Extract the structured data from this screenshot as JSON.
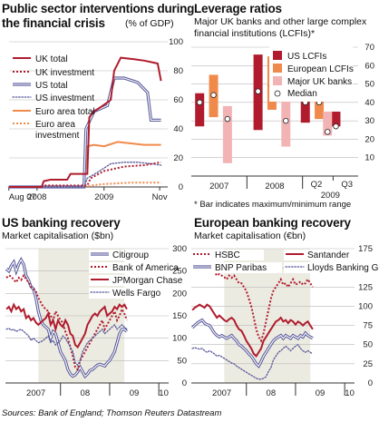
{
  "charts": {
    "public": {
      "title_line1": "Public sector interventions during",
      "title_line2": "the financial crisis",
      "unit": "(% of GDP)"
    },
    "leverage": {
      "title": "Leverage ratios",
      "sub_line1": "Major UK banks and other large complex",
      "sub_line2": "financial institutions (LCFIs)*",
      "footnote": "* Bar indicates maximum/minimum range"
    },
    "us": {
      "title": "US banking recovery",
      "sub": "Market capitalisation ($bn)"
    },
    "eu": {
      "title": "European banking recovery",
      "sub": "Market capitalisation (€bn)"
    }
  },
  "source": "Sources: Bank of England; Thomson Reuters Datastream",
  "colors": {
    "red": "#b01c2e",
    "navy": "#5a5a9c",
    "orange": "#f08a4b",
    "pink": "#f2b3b5",
    "shade": "#ecebe1",
    "grid": "#b8b8b8"
  },
  "chart_data": [
    {
      "id": "public",
      "type": "line",
      "ylim": [
        0,
        100
      ],
      "yticks": [
        0,
        20,
        40,
        60,
        80,
        100
      ],
      "xlim": [
        2007.583,
        2009.95
      ],
      "xtick_labels": [
        {
          "label": "Aug 07",
          "x": 2007.58
        },
        {
          "label": "2008",
          "x": 2008.0
        },
        {
          "label": "2009",
          "x": 2009.0
        },
        {
          "label": "Nov",
          "x": 2009.83
        }
      ],
      "series": [
        {
          "name": "UK total",
          "color": "#b01c2e",
          "style": "solid",
          "points": [
            [
              2007.58,
              0
            ],
            [
              2008.07,
              0
            ],
            [
              2008.1,
              4
            ],
            [
              2008.2,
              5
            ],
            [
              2008.45,
              5
            ],
            [
              2008.5,
              9
            ],
            [
              2008.75,
              9
            ],
            [
              2008.78,
              48
            ],
            [
              2008.85,
              52
            ],
            [
              2008.95,
              55
            ],
            [
              2009.1,
              60
            ],
            [
              2009.15,
              80
            ],
            [
              2009.25,
              89
            ],
            [
              2009.45,
              88
            ],
            [
              2009.6,
              87
            ],
            [
              2009.7,
              86
            ],
            [
              2009.8,
              85
            ],
            [
              2009.85,
              73
            ]
          ]
        },
        {
          "name": "UK investment",
          "color": "#b01c2e",
          "style": "dotted",
          "points": [
            [
              2007.58,
              0
            ],
            [
              2008.07,
              0
            ],
            [
              2008.1,
              1
            ],
            [
              2008.75,
              1
            ],
            [
              2008.8,
              6
            ],
            [
              2009.0,
              11
            ],
            [
              2009.3,
              14
            ],
            [
              2009.6,
              15
            ],
            [
              2009.85,
              17
            ]
          ]
        },
        {
          "name": "US total",
          "color": "#5a5a9c",
          "style": "double",
          "points": [
            [
              2007.58,
              0
            ],
            [
              2008.7,
              0
            ],
            [
              2008.73,
              40
            ],
            [
              2008.85,
              52
            ],
            [
              2008.95,
              54
            ],
            [
              2009.05,
              56
            ],
            [
              2009.15,
              75
            ],
            [
              2009.3,
              75
            ],
            [
              2009.5,
              72
            ],
            [
              2009.65,
              65
            ],
            [
              2009.7,
              46
            ],
            [
              2009.85,
              46
            ]
          ]
        },
        {
          "name": "US investment",
          "color": "#5a5a9c",
          "style": "open-dots",
          "points": [
            [
              2007.58,
              0
            ],
            [
              2008.7,
              0
            ],
            [
              2008.75,
              6
            ],
            [
              2008.9,
              10
            ],
            [
              2009.1,
              16
            ],
            [
              2009.3,
              17
            ],
            [
              2009.5,
              17
            ],
            [
              2009.7,
              16
            ],
            [
              2009.85,
              15
            ]
          ]
        },
        {
          "name": "Euro area total",
          "color": "#f08a4b",
          "style": "solid",
          "points": [
            [
              2007.58,
              0
            ],
            [
              2008.7,
              0
            ],
            [
              2008.75,
              28
            ],
            [
              2008.85,
              29
            ],
            [
              2009.0,
              28
            ],
            [
              2009.2,
              31
            ],
            [
              2009.4,
              30
            ],
            [
              2009.6,
              29
            ],
            [
              2009.85,
              29
            ]
          ]
        },
        {
          "name": "Euro area investment",
          "color": "#f08a4b",
          "style": "dotted",
          "points": [
            [
              2007.58,
              0
            ],
            [
              2008.75,
              0
            ],
            [
              2008.8,
              1
            ],
            [
              2009.0,
              2
            ],
            [
              2009.4,
              3
            ],
            [
              2009.85,
              3
            ]
          ]
        }
      ]
    },
    {
      "id": "leverage",
      "type": "bar",
      "ylim": [
        0,
        70
      ],
      "ytick_labels": [
        "10",
        "20",
        "30",
        "40",
        "50",
        "60",
        "70"
      ],
      "yticks": [
        10,
        20,
        30,
        40,
        50,
        60,
        70
      ],
      "xtick_labels": [
        {
          "label": "2007",
          "x": 2007.5
        },
        {
          "label": "2008",
          "x": 2008.5
        },
        {
          "label": "Q2",
          "x": 2009.25
        },
        {
          "label": "2009",
          "x": 2009.5
        },
        {
          "label": "Q3",
          "x": 2009.8
        }
      ],
      "xlim": [
        2007.0,
        2010.0
      ],
      "series": [
        {
          "name": "US LCFIs",
          "color": "#b01c2e",
          "ranges": [
            [
              2007.15,
              27,
              45,
              40
            ],
            [
              2008.2,
              25,
              66,
              46
            ],
            [
              2009.05,
              29,
              52,
              40
            ],
            [
              2009.6,
              27,
              35,
              27
            ]
          ]
        },
        {
          "name": "European LCFIs",
          "color": "#f08a4b",
          "ranges": [
            [
              2007.4,
              32,
              55,
              44
            ],
            [
              2008.45,
              36,
              65,
              49
            ],
            [
              2009.3,
              31,
              43,
              40
            ]
          ]
        },
        {
          "name": "Major UK banks",
          "color": "#f2b3b5",
          "ranges": [
            [
              2007.65,
              7,
              38,
              31
            ],
            [
              2008.7,
              16,
              43,
              30
            ],
            [
              2009.45,
              22,
              35,
              24
            ]
          ]
        }
      ],
      "median_label": "Median"
    },
    {
      "id": "us",
      "type": "line",
      "ylim": [
        0,
        300
      ],
      "yticks": [
        0,
        50,
        100,
        150,
        200,
        250,
        300
      ],
      "xlim": [
        2006.88,
        2010.2
      ],
      "xtick_labels": [
        {
          "label": "2007",
          "x": 2007.5
        },
        {
          "label": "08",
          "x": 2008.5
        },
        {
          "label": "09",
          "x": 2009.5
        },
        {
          "label": "10",
          "x": 2010.1
        }
      ],
      "series": [
        {
          "name": "Citigroup",
          "color": "#5a5a9c",
          "style": "double",
          "values_start": 2006.9,
          "values_step": 0.05,
          "values": [
            255,
            250,
            262,
            270,
            250,
            265,
            275,
            265,
            240,
            230,
            215,
            210,
            190,
            160,
            140,
            130,
            125,
            120,
            100,
            115,
            110,
            90,
            70,
            60,
            50,
            30,
            20,
            15,
            18,
            25,
            35,
            25,
            15,
            20,
            28,
            30,
            35,
            40,
            42,
            40,
            38,
            45,
            50,
            60,
            70,
            90,
            110,
            120,
            120,
            115
          ]
        },
        {
          "name": "Bank of America",
          "color": "#b01c2e",
          "style": "dotted",
          "values_start": 2006.9,
          "values_step": 0.05,
          "values": [
            235,
            240,
            238,
            230,
            225,
            235,
            230,
            240,
            232,
            225,
            215,
            210,
            205,
            190,
            180,
            170,
            165,
            160,
            150,
            140,
            160,
            150,
            140,
            135,
            115,
            100,
            80,
            60,
            35,
            30,
            50,
            60,
            70,
            80,
            90,
            100,
            110,
            120,
            130,
            140,
            120,
            130,
            140,
            150,
            160,
            140,
            150,
            165,
            155,
            140
          ]
        },
        {
          "name": "JPMorgan Chase",
          "color": "#b01c2e",
          "style": "solid",
          "values_start": 2006.9,
          "values_step": 0.05,
          "values": [
            165,
            170,
            160,
            175,
            165,
            170,
            160,
            165,
            145,
            150,
            140,
            145,
            135,
            130,
            135,
            140,
            145,
            155,
            130,
            140,
            120,
            140,
            130,
            125,
            140,
            130,
            110,
            105,
            85,
            80,
            90,
            100,
            110,
            130,
            140,
            150,
            155,
            150,
            160,
            165,
            170,
            150,
            155,
            160,
            170,
            165,
            175,
            170,
            175,
            165
          ]
        },
        {
          "name": "Wells Fargo",
          "color": "#5a5a9c",
          "style": "open-dots",
          "values_start": 2006.9,
          "values_step": 0.05,
          "values": [
            120,
            122,
            118,
            120,
            115,
            118,
            120,
            115,
            110,
            105,
            95,
            100,
            95,
            90,
            92,
            95,
            100,
            105,
            90,
            95,
            85,
            90,
            95,
            105,
            100,
            90,
            80,
            70,
            45,
            40,
            50,
            70,
            80,
            90,
            95,
            100,
            105,
            110,
            115,
            120,
            110,
            115,
            120,
            125,
            130,
            120,
            125,
            130,
            125,
            120
          ]
        }
      ]
    },
    {
      "id": "eu",
      "type": "line",
      "ylim": [
        0,
        175
      ],
      "yticks": [
        0,
        25,
        50,
        75,
        100,
        125,
        150,
        175
      ],
      "xlim": [
        2006.88,
        2010.2
      ],
      "xtick_labels": [
        {
          "label": "2007",
          "x": 2007.5
        },
        {
          "label": "08",
          "x": 2008.5
        },
        {
          "label": "09",
          "x": 2009.5
        },
        {
          "label": "10",
          "x": 2010.1
        }
      ],
      "series": [
        {
          "name": "HSBC",
          "color": "#b01c2e",
          "style": "dotted",
          "values_start": 2006.9,
          "values_step": 0.05,
          "values": [
            150,
            148,
            152,
            155,
            150,
            148,
            152,
            155,
            150,
            145,
            140,
            142,
            140,
            138,
            135,
            140,
            137,
            140,
            135,
            130,
            130,
            125,
            120,
            110,
            100,
            85,
            70,
            60,
            55,
            65,
            80,
            95,
            110,
            120,
            125,
            130,
            135,
            128,
            130,
            125,
            130,
            135,
            128,
            130,
            132,
            128,
            130,
            135,
            130,
            125
          ]
        },
        {
          "name": "Santander",
          "color": "#b01c2e",
          "style": "solid",
          "values_start": 2006.9,
          "values_step": 0.05,
          "values": [
            95,
            98,
            100,
            102,
            100,
            98,
            102,
            100,
            95,
            90,
            85,
            88,
            85,
            82,
            80,
            83,
            85,
            82,
            75,
            70,
            68,
            62,
            55,
            50,
            45,
            38,
            35,
            40,
            45,
            55,
            60,
            65,
            70,
            75,
            80,
            82,
            85,
            80,
            82,
            78,
            82,
            80,
            76,
            80,
            78,
            75,
            78,
            80,
            75,
            70
          ]
        },
        {
          "name": "BNP Paribas",
          "color": "#5a5a9c",
          "style": "double",
          "values_start": 2006.9,
          "values_step": 0.05,
          "values": [
            72,
            75,
            78,
            80,
            82,
            78,
            76,
            75,
            70,
            65,
            62,
            60,
            62,
            60,
            58,
            60,
            62,
            58,
            55,
            50,
            48,
            45,
            42,
            38,
            35,
            30,
            25,
            22,
            28,
            35,
            40,
            45,
            50,
            55,
            58,
            60,
            62,
            58,
            62,
            60,
            58,
            62,
            60,
            58,
            62,
            60,
            65,
            62,
            60,
            58
          ]
        },
        {
          "name": "Lloyds Banking Group",
          "color": "#5a5a9c",
          "style": "open-dots",
          "values_start": 2006.9,
          "values_step": 0.05,
          "values": [
            45,
            46,
            45,
            44,
            45,
            42,
            40,
            42,
            40,
            38,
            35,
            36,
            34,
            32,
            30,
            28,
            26,
            25,
            22,
            20,
            18,
            16,
            14,
            12,
            10,
            8,
            6,
            5,
            5,
            6,
            8,
            15,
            20,
            30,
            35,
            40,
            42,
            45,
            48,
            45,
            42,
            45,
            48,
            50,
            45,
            42,
            40,
            42,
            40,
            38
          ]
        }
      ]
    }
  ]
}
